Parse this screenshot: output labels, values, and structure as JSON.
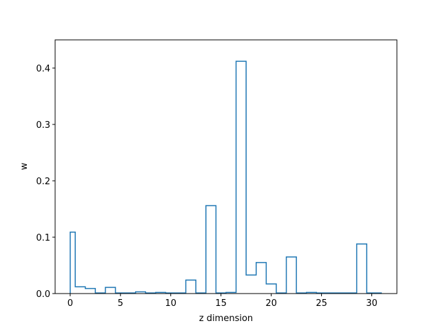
{
  "chart_data": {
    "type": "line",
    "style": "step histogram",
    "title": "",
    "xlabel": "z dimension",
    "ylabel": "w",
    "xlim": [
      -1.5,
      32.5
    ],
    "ylim": [
      0,
      0.45
    ],
    "xticks": [
      "0",
      "5",
      "10",
      "15",
      "20",
      "25",
      "30"
    ],
    "yticks": [
      "0.0",
      "0.1",
      "0.2",
      "0.3",
      "0.4"
    ],
    "grid": false,
    "series": [
      {
        "color": "#1f77b4",
        "x": [
          0,
          1,
          2,
          3,
          4,
          5,
          6,
          7,
          8,
          9,
          10,
          11,
          12,
          13,
          14,
          15,
          16,
          17,
          18,
          19,
          20,
          21,
          22,
          23,
          24,
          25,
          26,
          27,
          28,
          29,
          30,
          31
        ],
        "values": [
          0.109,
          0.012,
          0.009,
          0.001,
          0.011,
          0.001,
          0.001,
          0.003,
          0.001,
          0.002,
          0.001,
          0.001,
          0.024,
          0.001,
          0.156,
          0.001,
          0.002,
          0.412,
          0.033,
          0.055,
          0.017,
          0.001,
          0.065,
          0.001,
          0.002,
          0.001,
          0.001,
          0.001,
          0.001,
          0.088,
          0.001,
          0.001
        ]
      }
    ]
  }
}
